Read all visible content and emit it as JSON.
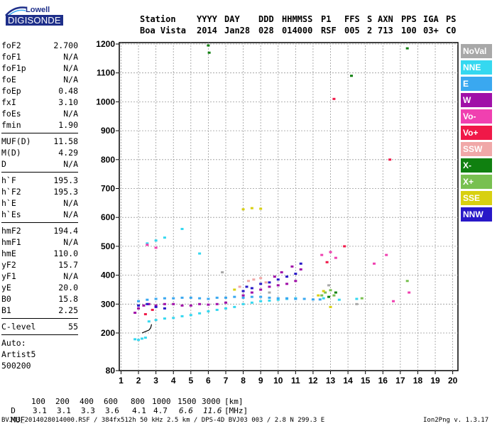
{
  "logo": {
    "line1": "Lowell",
    "line2": "DIGISONDE"
  },
  "header": {
    "cols": [
      {
        "h": "Station",
        "v": "Boa Vista"
      },
      {
        "h": "YYYY",
        "v": "2014"
      },
      {
        "h": "DAY",
        "v": "Jan28"
      },
      {
        "h": "DDD",
        "v": "028"
      },
      {
        "h": "HHMMSS",
        "v": "014000"
      },
      {
        "h": "P1",
        "v": "RSF"
      },
      {
        "h": "FFS",
        "v": "005"
      },
      {
        "h": "S",
        "v": "2"
      },
      {
        "h": "AXN",
        "v": "713"
      },
      {
        "h": "PPS",
        "v": "100"
      },
      {
        "h": "IGA",
        "v": "03+"
      },
      {
        "h": "PS",
        "v": "C0"
      }
    ]
  },
  "params": {
    "group1": [
      [
        "foF2",
        "2.700"
      ],
      [
        "foF1",
        "N/A"
      ],
      [
        "foF1p",
        "N/A"
      ],
      [
        "foE",
        "N/A"
      ],
      [
        "foEp",
        "0.48"
      ],
      [
        "fxI",
        "3.10"
      ],
      [
        "foEs",
        "N/A"
      ],
      [
        "fmin",
        "1.90"
      ]
    ],
    "group2": [
      [
        "MUF(D)",
        "11.58"
      ],
      [
        "M(D)",
        "4.29"
      ],
      [
        "D",
        "N/A"
      ]
    ],
    "group3": [
      [
        "h`F",
        "195.3"
      ],
      [
        "h`F2",
        "195.3"
      ],
      [
        "h`E",
        "N/A"
      ],
      [
        "h`Es",
        "N/A"
      ]
    ],
    "group4": [
      [
        "hmF2",
        "194.4"
      ],
      [
        "hmF1",
        "N/A"
      ],
      [
        "hmE",
        "110.0"
      ],
      [
        "yF2",
        "15.7"
      ],
      [
        "yF1",
        "N/A"
      ],
      [
        "yE",
        "20.0"
      ],
      [
        "B0",
        "15.8"
      ],
      [
        "B1",
        "2.25"
      ]
    ],
    "clevel": {
      "label": "C-level",
      "value": "55"
    },
    "extra": [
      "Auto:",
      "Artist5",
      "500200"
    ]
  },
  "legend": [
    {
      "label": "NoVal",
      "color": "#a8a8a8"
    },
    {
      "label": "NNE",
      "color": "#35d8f0"
    },
    {
      "label": "E",
      "color": "#3aa8f0"
    },
    {
      "label": "W",
      "color": "#a010a8"
    },
    {
      "label": "Vo-",
      "color": "#f040b0"
    },
    {
      "label": "Vo+",
      "color": "#f01848"
    },
    {
      "label": "SSW",
      "color": "#f0a8a8"
    },
    {
      "label": "X-",
      "color": "#108010"
    },
    {
      "label": "X+",
      "color": "#78c050"
    },
    {
      "label": "SSE",
      "color": "#d8d010"
    },
    {
      "label": "NNW",
      "color": "#2818c8"
    }
  ],
  "footer": {
    "d_label": "D",
    "d_values": [
      "100",
      "200",
      "400",
      "600",
      "800",
      "1000",
      "1500",
      "3000"
    ],
    "d_unit": "[km]",
    "muf_label": "MUF",
    "muf_values": [
      "3.1",
      "3.1",
      "3.3",
      "3.6",
      "4.1",
      "4.7",
      "6.6",
      "11.6"
    ],
    "muf_unit": "[MHz]",
    "file_line": "BVJ03_2014028014000.RSF / 384fx512h 50 kHz 2.5 km / DPS-4D BVJ03 003 / 2.8 N 299.3 E",
    "version": "Ion2Png v. 1.3.17"
  },
  "chart_data": {
    "type": "scatter",
    "title": "",
    "xlabel": "",
    "ylabel": "",
    "xlim": [
      0.9,
      20.3
    ],
    "ylim": [
      80,
      1200
    ],
    "xticks": [
      1,
      2,
      3,
      4,
      5,
      6,
      7,
      8,
      9,
      10,
      11,
      12,
      13,
      14,
      15,
      16,
      17,
      18,
      19,
      20
    ],
    "yticks": [
      80,
      200,
      300,
      400,
      500,
      600,
      700,
      800,
      900,
      1000,
      1100,
      1200
    ],
    "grid": true,
    "legend_position": "right",
    "series": [
      {
        "name": "NNE",
        "color": "#35d8f0",
        "points": [
          [
            1.8,
            180
          ],
          [
            2.0,
            178
          ],
          [
            2.2,
            182
          ],
          [
            2.4,
            185
          ],
          [
            2.6,
            240
          ],
          [
            3.0,
            245
          ],
          [
            3.5,
            250
          ],
          [
            4.0,
            252
          ],
          [
            4.5,
            258
          ],
          [
            5.0,
            262
          ],
          [
            5.5,
            268
          ],
          [
            6.0,
            275
          ],
          [
            6.5,
            280
          ],
          [
            7.0,
            285
          ],
          [
            7.5,
            290
          ],
          [
            8.0,
            300
          ],
          [
            8.5,
            305
          ],
          [
            9.0,
            310
          ],
          [
            9.5,
            312
          ],
          [
            10.0,
            315
          ],
          [
            10.5,
            318
          ],
          [
            11.0,
            320
          ],
          [
            2.5,
            510
          ],
          [
            3.0,
            520
          ],
          [
            3.5,
            530
          ],
          [
            4.5,
            560
          ],
          [
            5.5,
            475
          ],
          [
            12.6,
            320
          ],
          [
            13.5,
            315
          ],
          [
            14.5,
            318
          ]
        ]
      },
      {
        "name": "E",
        "color": "#3aa8f0",
        "points": [
          [
            2.0,
            310
          ],
          [
            2.5,
            315
          ],
          [
            3.0,
            318
          ],
          [
            3.5,
            320
          ],
          [
            4.0,
            320
          ],
          [
            4.5,
            322
          ],
          [
            5.0,
            322
          ],
          [
            5.5,
            320
          ],
          [
            6.0,
            318
          ],
          [
            6.5,
            322
          ],
          [
            7.0,
            322
          ],
          [
            7.5,
            325
          ],
          [
            8.0,
            322
          ],
          [
            8.5,
            325
          ],
          [
            9.0,
            325
          ],
          [
            9.5,
            322
          ],
          [
            10.0,
            320
          ],
          [
            10.5,
            320
          ],
          [
            11.0,
            318
          ],
          [
            11.5,
            318
          ],
          [
            12.0,
            316
          ],
          [
            12.4,
            316
          ]
        ]
      },
      {
        "name": "W",
        "color": "#a010a8",
        "points": [
          [
            1.8,
            270
          ],
          [
            2.0,
            285
          ],
          [
            2.3,
            295
          ],
          [
            2.6,
            300
          ],
          [
            3.0,
            295
          ],
          [
            3.5,
            300
          ],
          [
            4.0,
            300
          ],
          [
            4.5,
            295
          ],
          [
            5.0,
            295
          ],
          [
            5.5,
            300
          ],
          [
            6.0,
            298
          ],
          [
            6.5,
            300
          ],
          [
            7.0,
            305
          ],
          [
            8.0,
            330
          ],
          [
            8.5,
            340
          ],
          [
            9.0,
            350
          ],
          [
            9.5,
            360
          ],
          [
            10.0,
            365
          ],
          [
            10.5,
            370
          ],
          [
            11.0,
            380
          ],
          [
            11.3,
            420
          ],
          [
            10.8,
            430
          ],
          [
            10.2,
            410
          ],
          [
            9.8,
            395
          ]
        ]
      },
      {
        "name": "Vo-",
        "color": "#f040b0",
        "points": [
          [
            2.5,
            505
          ],
          [
            3.0,
            495
          ],
          [
            12.5,
            470
          ],
          [
            13.0,
            480
          ],
          [
            13.3,
            460
          ],
          [
            15.5,
            440
          ],
          [
            16.2,
            470
          ],
          [
            16.6,
            310
          ],
          [
            17.5,
            340
          ]
        ]
      },
      {
        "name": "Vo+",
        "color": "#f01848",
        "points": [
          [
            2.4,
            265
          ],
          [
            2.8,
            280
          ],
          [
            12.8,
            445
          ],
          [
            13.8,
            500
          ],
          [
            16.4,
            800
          ],
          [
            13.2,
            1010
          ]
        ]
      },
      {
        "name": "SSW",
        "color": "#f0a8a8",
        "points": [
          [
            8.3,
            380
          ],
          [
            8.6,
            385
          ],
          [
            9.0,
            390
          ],
          [
            9.3,
            375
          ],
          [
            7.8,
            360
          ]
        ]
      },
      {
        "name": "X-",
        "color": "#108010",
        "points": [
          [
            6.0,
            1195
          ],
          [
            6.05,
            1170
          ],
          [
            12.9,
            325
          ],
          [
            13.3,
            340
          ],
          [
            14.2,
            1090
          ],
          [
            17.4,
            1185
          ]
        ]
      },
      {
        "name": "X+",
        "color": "#78c050",
        "points": [
          [
            12.5,
            330
          ],
          [
            12.7,
            340
          ],
          [
            13.0,
            348
          ],
          [
            13.2,
            330
          ],
          [
            14.8,
            320
          ],
          [
            17.4,
            380
          ]
        ]
      },
      {
        "name": "SSE",
        "color": "#d8d010",
        "points": [
          [
            8.0,
            628
          ],
          [
            8.5,
            632
          ],
          [
            9.0,
            630
          ],
          [
            12.3,
            330
          ],
          [
            12.6,
            345
          ],
          [
            13.0,
            290
          ],
          [
            7.5,
            350
          ]
        ]
      },
      {
        "name": "NNW",
        "color": "#2818c8",
        "points": [
          [
            2.0,
            295
          ],
          [
            2.5,
            300
          ],
          [
            3.0,
            290
          ],
          [
            3.5,
            285
          ],
          [
            8.0,
            345
          ],
          [
            8.5,
            355
          ],
          [
            9.0,
            370
          ],
          [
            9.5,
            375
          ],
          [
            10.0,
            385
          ],
          [
            10.5,
            395
          ],
          [
            11.0,
            405
          ],
          [
            11.3,
            440
          ],
          [
            8.2,
            360
          ]
        ]
      },
      {
        "name": "NoVal",
        "color": "#a8a8a8",
        "points": [
          [
            6.8,
            410
          ],
          [
            9.5,
            340
          ],
          [
            12.9,
            365
          ],
          [
            14.5,
            300
          ]
        ]
      }
    ],
    "profile_curve": [
      [
        2.2,
        200
      ],
      [
        2.4,
        205
      ],
      [
        2.6,
        210
      ],
      [
        2.7,
        218
      ],
      [
        2.75,
        230
      ]
    ]
  }
}
